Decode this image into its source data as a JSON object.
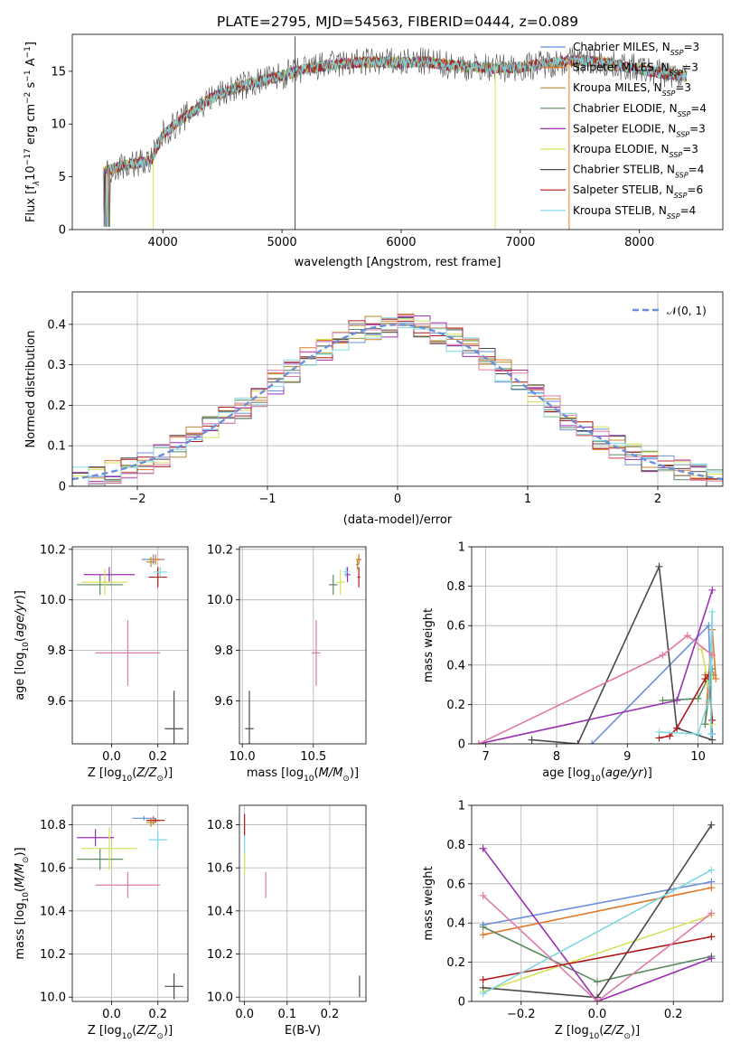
{
  "title": "PLATE=2795, MJD=54563, FIBERID=0444, z=0.089",
  "colors": {
    "Chabrier MILES": "#6b8fd8",
    "Salpeter MILES": "#e07a2a",
    "Kroupa MILES": "#b8892e",
    "Chabrier ELODIE": "#5a8a5e",
    "Salpeter ELODIE": "#9a2fb0",
    "Kroupa ELODIE": "#d6e05a",
    "Chabrier STELIB": "#4a4a4a",
    "Salpeter STELIB": "#b01818",
    "Kroupa STELIB": "#7fd8e0",
    "Kroupa ELODIE dark": "#c8d84a",
    "pink": "#e07aa8"
  },
  "chart_data": [
    {
      "type": "line",
      "name": "spectrum",
      "xlabel": "wavelength [Angstrom, rest frame]",
      "ylabel": "Flux [f_λ10^{-17} erg cm^{-2} s^{-1} A^{-1}]",
      "ylabel_parts": {
        "pre": "Flux [f",
        "sub": "λ",
        "mid": "10",
        "sup1": "−17",
        "mid2": " erg cm",
        "sup2": "−2",
        "mid3": " s",
        "sup3": "−1",
        "mid4": " A",
        "sup4": "−1",
        "post": "]"
      },
      "xlim": [
        3240,
        8700
      ],
      "ylim": [
        0,
        18.5
      ],
      "xticks": [
        4000,
        5000,
        6000,
        7000,
        8000
      ],
      "yticks": [
        0,
        5,
        10,
        15
      ],
      "grid": false,
      "legend_position": "top-right",
      "legend": [
        {
          "label": "Chabrier MILES",
          "nssp": "3"
        },
        {
          "label": "Salpeter MILES",
          "nssp": "3"
        },
        {
          "label": "Kroupa MILES",
          "nssp": "3"
        },
        {
          "label": "Chabrier ELODIE",
          "nssp": "4"
        },
        {
          "label": "Salpeter ELODIE",
          "nssp": "3"
        },
        {
          "label": "Kroupa ELODIE",
          "nssp": "3"
        },
        {
          "label": "Chabrier STELIB",
          "nssp": "4"
        },
        {
          "label": "Salpeter STELIB",
          "nssp": "6"
        },
        {
          "label": "Kroupa STELIB",
          "nssp": "4"
        }
      ],
      "legend_sub": "SSP",
      "legend_prefix": "N",
      "continuum": [
        [
          3500,
          5.5
        ],
        [
          3700,
          6.2
        ],
        [
          3900,
          6.5
        ],
        [
          4000,
          9.0
        ],
        [
          4200,
          10.8
        ],
        [
          4400,
          12.4
        ],
        [
          4600,
          13.4
        ],
        [
          4800,
          14.0
        ],
        [
          5000,
          14.6
        ],
        [
          5200,
          15.2
        ],
        [
          5400,
          15.6
        ],
        [
          5600,
          15.8
        ],
        [
          5800,
          15.9
        ],
        [
          6000,
          15.8
        ],
        [
          6200,
          15.9
        ],
        [
          6400,
          15.6
        ],
        [
          6600,
          15.4
        ],
        [
          6800,
          15.3
        ],
        [
          7000,
          15.4
        ],
        [
          7200,
          15.7
        ],
        [
          7400,
          16.0
        ],
        [
          7600,
          16.0
        ],
        [
          7800,
          15.6
        ],
        [
          8000,
          15.2
        ],
        [
          8200,
          14.8
        ],
        [
          8400,
          14.5
        ]
      ],
      "spikes": [
        [
          5110,
          0,
          18.3
        ],
        [
          6790,
          0,
          15.5
        ],
        [
          7410,
          0,
          16.0
        ],
        [
          3920,
          0,
          6.5
        ]
      ]
    },
    {
      "type": "line",
      "name": "residual-distribution",
      "xlabel": "(data-model)/error",
      "ylabel": "Normed distribution",
      "xlim": [
        -2.5,
        2.5
      ],
      "ylim": [
        0,
        0.48
      ],
      "xticks": [
        -2,
        -1,
        0,
        1,
        2
      ],
      "xticklabels": [
        "−2",
        "−1",
        "0",
        "1",
        "2"
      ],
      "yticks": [
        0.0,
        0.1,
        0.2,
        0.3,
        0.4
      ],
      "grid": true,
      "legend_position": "top-right",
      "legend_label": "𝒩(0, 1)"
    },
    {
      "type": "scatter",
      "name": "age-vs-metallicity",
      "xlabel": "Z [log10(Z/Z⊙)]",
      "ylabel": "age [log10(age/yr)]",
      "xlim": [
        -0.17,
        0.33
      ],
      "ylim": [
        9.43,
        10.21
      ],
      "xticks": [
        0.0,
        0.2
      ],
      "xticklabels": [
        "0.0",
        "0.2"
      ],
      "yticks": [
        9.6,
        9.8,
        10.0,
        10.2
      ],
      "yticklabels": [
        "9.6",
        "9.8",
        "10.0",
        "10.2"
      ],
      "grid": true,
      "points": [
        {
          "x": 0.18,
          "y": 10.16,
          "xerr": 0.05,
          "yerr": 0.02,
          "color": "Chabrier MILES"
        },
        {
          "x": 0.19,
          "y": 10.16,
          "xerr": 0.03,
          "yerr": 0.02,
          "color": "Salpeter MILES"
        },
        {
          "x": 0.17,
          "y": 10.15,
          "xerr": 0.02,
          "yerr": 0.02,
          "color": "Kroupa MILES"
        },
        {
          "x": -0.05,
          "y": 10.06,
          "xerr": 0.1,
          "yerr": 0.04,
          "color": "Chabrier ELODIE"
        },
        {
          "x": -0.01,
          "y": 10.1,
          "xerr": 0.11,
          "yerr": 0.03,
          "color": "Salpeter ELODIE"
        },
        {
          "x": -0.03,
          "y": 10.07,
          "xerr": 0.1,
          "yerr": 0.05,
          "color": "Kroupa ELODIE"
        },
        {
          "x": 0.27,
          "y": 9.49,
          "xerr": 0.04,
          "yerr": 0.15,
          "color": "Chabrier STELIB"
        },
        {
          "x": 0.2,
          "y": 10.09,
          "xerr": 0.04,
          "yerr": 0.04,
          "color": "Salpeter STELIB"
        },
        {
          "x": 0.21,
          "y": 10.11,
          "xerr": 0.03,
          "yerr": 0.02,
          "color": "Kroupa STELIB"
        },
        {
          "x": 0.07,
          "y": 9.79,
          "xerr": 0.14,
          "yerr": 0.13,
          "color": "pink"
        }
      ]
    },
    {
      "type": "scatter",
      "name": "age-vs-mass",
      "xlabel": "mass [log10(M/M⊙)]",
      "ylabel": "",
      "xlim": [
        9.98,
        10.87
      ],
      "ylim": [
        9.43,
        10.21
      ],
      "xticks": [
        10.0,
        10.5
      ],
      "xticklabels": [
        "10.0",
        "10.5"
      ],
      "yticks": [
        9.6,
        9.8,
        10.0,
        10.2
      ],
      "yticklabels": [
        "9.6",
        "9.8",
        "10.0",
        "10.2"
      ],
      "grid": true,
      "points": [
        {
          "x": 10.82,
          "y": 10.16,
          "xerr": 0.01,
          "yerr": 0.02,
          "color": "Chabrier MILES"
        },
        {
          "x": 10.82,
          "y": 10.16,
          "xerr": 0.02,
          "yerr": 0.02,
          "color": "Salpeter MILES"
        },
        {
          "x": 10.81,
          "y": 10.14,
          "xerr": 0.01,
          "yerr": 0.02,
          "color": "Kroupa MILES"
        },
        {
          "x": 10.64,
          "y": 10.06,
          "xerr": 0.03,
          "yerr": 0.04,
          "color": "Chabrier ELODIE"
        },
        {
          "x": 10.74,
          "y": 10.1,
          "xerr": 0.02,
          "yerr": 0.03,
          "color": "Salpeter ELODIE"
        },
        {
          "x": 10.69,
          "y": 10.07,
          "xerr": 0.03,
          "yerr": 0.05,
          "color": "Kroupa ELODIE"
        },
        {
          "x": 10.05,
          "y": 9.49,
          "xerr": 0.03,
          "yerr": 0.15,
          "color": "Chabrier STELIB"
        },
        {
          "x": 10.82,
          "y": 10.09,
          "xerr": 0.01,
          "yerr": 0.04,
          "color": "Salpeter STELIB"
        },
        {
          "x": 10.73,
          "y": 10.11,
          "xerr": 0.02,
          "yerr": 0.02,
          "color": "Kroupa STELIB"
        },
        {
          "x": 10.52,
          "y": 9.79,
          "xerr": 0.03,
          "yerr": 0.13,
          "color": "pink"
        }
      ]
    },
    {
      "type": "line",
      "name": "mass-weight-vs-age",
      "xlabel": "age [log10(age/yr)]",
      "ylabel": "mass weight",
      "xlim": [
        6.8,
        10.35
      ],
      "ylim": [
        0,
        1.0
      ],
      "xticks": [
        7,
        8,
        9,
        10
      ],
      "yticks": [
        0.0,
        0.2,
        0.4,
        0.6,
        0.8,
        1.0
      ],
      "grid": true,
      "series": [
        {
          "color": "Chabrier MILES",
          "points": [
            [
              8.5,
              0.0
            ],
            [
              10.15,
              0.6
            ],
            [
              10.2,
              0.05
            ]
          ]
        },
        {
          "color": "Salpeter MILES",
          "points": [
            [
              10.1,
              0.1
            ],
            [
              10.2,
              0.58
            ],
            [
              10.25,
              0.33
            ]
          ]
        },
        {
          "color": "Kroupa MILES",
          "points": [
            [
              10.1,
              0.35
            ],
            [
              10.22,
              0.35
            ]
          ]
        },
        {
          "color": "Chabrier ELODIE",
          "points": [
            [
              9.5,
              0.22
            ],
            [
              10.0,
              0.23
            ],
            [
              10.2,
              0.38
            ],
            [
              10.1,
              0.1
            ]
          ]
        },
        {
          "color": "Salpeter ELODIE",
          "points": [
            [
              6.9,
              0.0
            ],
            [
              9.7,
              0.22
            ],
            [
              10.2,
              0.78
            ]
          ]
        },
        {
          "color": "Kroupa ELODIE",
          "points": [
            [
              10.05,
              0.48
            ],
            [
              10.15,
              0.3
            ],
            [
              10.2,
              0.1
            ]
          ]
        },
        {
          "color": "Chabrier STELIB",
          "points": [
            [
              7.65,
              0.02
            ],
            [
              8.3,
              0.0
            ],
            [
              9.45,
              0.9
            ],
            [
              9.7,
              0.08
            ],
            [
              10.2,
              0.02
            ]
          ]
        },
        {
          "color": "Salpeter STELIB",
          "points": [
            [
              9.45,
              0.03
            ],
            [
              9.6,
              0.04
            ],
            [
              9.7,
              0.08
            ],
            [
              10.1,
              0.33
            ],
            [
              10.15,
              0.35
            ],
            [
              10.2,
              0.12
            ]
          ]
        },
        {
          "color": "Kroupa STELIB",
          "points": [
            [
              9.45,
              0.06
            ],
            [
              10.0,
              0.05
            ],
            [
              10.15,
              0.22
            ],
            [
              10.2,
              0.67
            ],
            [
              10.18,
              0.05
            ]
          ]
        },
        {
          "color": "pink",
          "points": [
            [
              6.9,
              0.0
            ],
            [
              9.5,
              0.45
            ],
            [
              9.85,
              0.55
            ],
            [
              10.2,
              0.45
            ]
          ]
        }
      ]
    },
    {
      "type": "scatter",
      "name": "mass-vs-metallicity",
      "xlabel": "Z [log10(Z/Z⊙)]",
      "ylabel": "mass [log10(M/M⊙)]",
      "xlim": [
        -0.17,
        0.33
      ],
      "ylim": [
        9.98,
        10.89
      ],
      "xticks": [
        0.0,
        0.2
      ],
      "xticklabels": [
        "0.0",
        "0.2"
      ],
      "yticks": [
        10.0,
        10.2,
        10.4,
        10.6,
        10.8
      ],
      "yticklabels": [
        "10.0",
        "10.2",
        "10.4",
        "10.6",
        "10.8"
      ],
      "grid": true,
      "points": [
        {
          "x": 0.14,
          "y": 10.83,
          "xerr": 0.05,
          "yerr": 0.01,
          "color": "Chabrier MILES"
        },
        {
          "x": 0.18,
          "y": 10.82,
          "xerr": 0.03,
          "yerr": 0.02,
          "color": "Salpeter MILES"
        },
        {
          "x": 0.17,
          "y": 10.81,
          "xerr": 0.02,
          "yerr": 0.02,
          "color": "Kroupa MILES"
        },
        {
          "x": -0.05,
          "y": 10.64,
          "xerr": 0.1,
          "yerr": 0.05,
          "color": "Chabrier ELODIE"
        },
        {
          "x": -0.07,
          "y": 10.74,
          "xerr": 0.08,
          "yerr": 0.04,
          "color": "Salpeter ELODIE"
        },
        {
          "x": -0.01,
          "y": 10.69,
          "xerr": 0.12,
          "yerr": 0.1,
          "color": "Kroupa ELODIE"
        },
        {
          "x": 0.27,
          "y": 10.05,
          "xerr": 0.04,
          "yerr": 0.06,
          "color": "Chabrier STELIB"
        },
        {
          "x": 0.19,
          "y": 10.82,
          "xerr": 0.04,
          "yerr": 0.01,
          "color": "Salpeter STELIB"
        },
        {
          "x": 0.2,
          "y": 10.73,
          "xerr": 0.04,
          "yerr": 0.04,
          "color": "Kroupa STELIB"
        },
        {
          "x": 0.07,
          "y": 10.52,
          "xerr": 0.14,
          "yerr": 0.06,
          "color": "pink"
        }
      ]
    },
    {
      "type": "scatter",
      "name": "mass-vs-extinction",
      "xlabel": "E(B-V)",
      "ylabel": "",
      "xlim": [
        -0.012,
        0.285
      ],
      "ylim": [
        9.98,
        10.89
      ],
      "xticks": [
        0.0,
        0.1,
        0.2
      ],
      "xticklabels": [
        "0.0",
        "0.1",
        "0.2"
      ],
      "yticks": [
        10.0,
        10.2,
        10.4,
        10.6,
        10.8
      ],
      "yticklabels": [
        "10.0",
        "10.2",
        "10.4",
        "10.6",
        "10.8"
      ],
      "grid": true,
      "points": [
        {
          "x": 0.0,
          "y": 10.8,
          "xerr": 0.0,
          "yerr": 0.05,
          "color": "Salpeter STELIB"
        },
        {
          "x": 0.0,
          "y": 10.7,
          "xerr": 0.0,
          "yerr": 0.05,
          "color": "Kroupa STELIB"
        },
        {
          "x": 0.0,
          "y": 10.62,
          "xerr": 0.0,
          "yerr": 0.05,
          "color": "Kroupa ELODIE"
        },
        {
          "x": 0.05,
          "y": 10.52,
          "xerr": 0.0,
          "yerr": 0.06,
          "color": "pink"
        },
        {
          "x": 0.27,
          "y": 10.05,
          "xerr": 0.0,
          "yerr": 0.05,
          "color": "Chabrier STELIB"
        }
      ]
    },
    {
      "type": "line",
      "name": "mass-weight-vs-metallicity",
      "xlabel": "Z [log10(Z/Z⊙)]",
      "ylabel": "mass weight",
      "xlim": [
        -0.33,
        0.33
      ],
      "ylim": [
        0,
        1.0
      ],
      "xticks": [
        -0.2,
        0.0,
        0.2
      ],
      "xticklabels": [
        "−0.2",
        "0.0",
        "0.2"
      ],
      "yticks": [
        0.0,
        0.2,
        0.4,
        0.6,
        0.8,
        1.0
      ],
      "grid": true,
      "series": [
        {
          "color": "Chabrier MILES",
          "points": [
            [
              -0.3,
              0.39
            ],
            [
              0.3,
              0.61
            ]
          ]
        },
        {
          "color": "Salpeter MILES",
          "points": [
            [
              -0.3,
              0.34
            ],
            [
              0.3,
              0.58
            ]
          ]
        },
        {
          "color": "Chabrier ELODIE",
          "points": [
            [
              -0.3,
              0.38
            ],
            [
              0.0,
              0.1
            ],
            [
              0.3,
              0.23
            ]
          ]
        },
        {
          "color": "Salpeter ELODIE",
          "points": [
            [
              -0.3,
              0.78
            ],
            [
              0.0,
              0.0
            ],
            [
              0.3,
              0.22
            ]
          ]
        },
        {
          "color": "Kroupa ELODIE",
          "points": [
            [
              -0.3,
              0.05
            ],
            [
              0.3,
              0.44
            ]
          ]
        },
        {
          "color": "Chabrier STELIB",
          "points": [
            [
              -0.3,
              0.07
            ],
            [
              0.0,
              0.02
            ],
            [
              0.3,
              0.9
            ]
          ]
        },
        {
          "color": "Salpeter STELIB",
          "points": [
            [
              -0.3,
              0.11
            ],
            [
              0.3,
              0.33
            ]
          ]
        },
        {
          "color": "Kroupa STELIB",
          "points": [
            [
              -0.3,
              0.04
            ],
            [
              0.3,
              0.67
            ]
          ]
        },
        {
          "color": "pink",
          "points": [
            [
              -0.3,
              0.54
            ],
            [
              0.0,
              0.0
            ],
            [
              0.3,
              0.45
            ]
          ]
        }
      ]
    }
  ]
}
